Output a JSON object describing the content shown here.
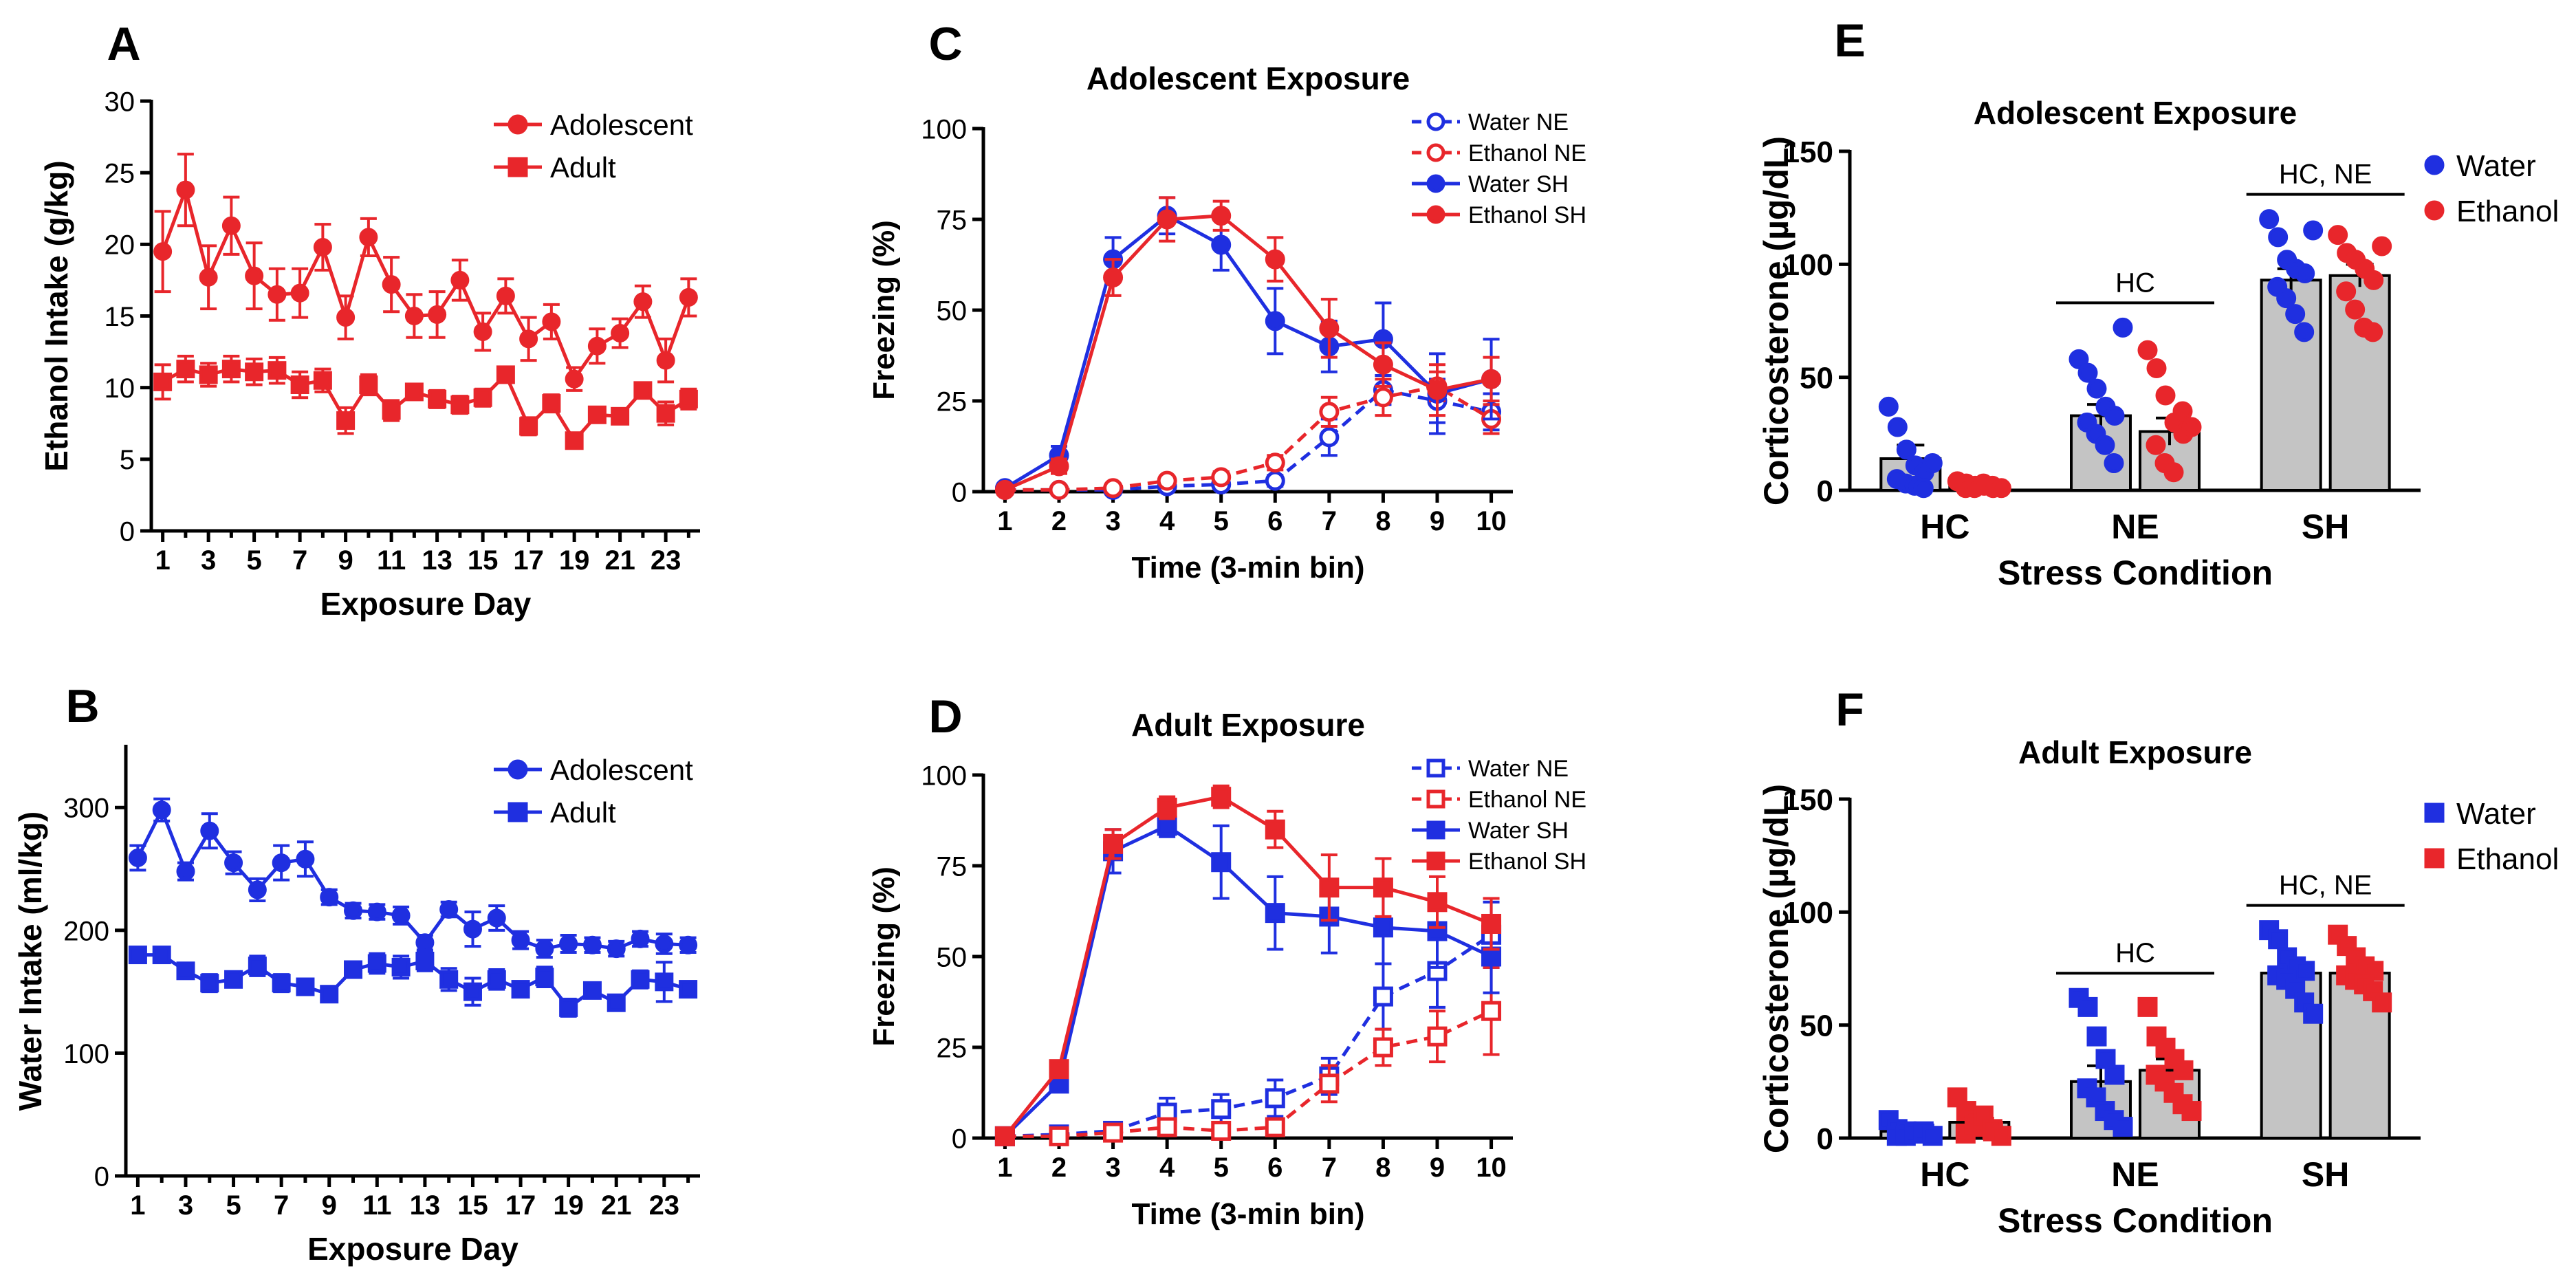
{
  "colors": {
    "red": "#e8262b",
    "blue": "#1f2fe0",
    "black": "#000000",
    "grey": "#c4c4c4"
  },
  "chart_data": [
    {
      "id": "A",
      "type": "line",
      "panel_label": "A",
      "title": "",
      "xlabel": "Exposure Day",
      "ylabel": "Ethanol Intake (g/kg)",
      "xlim": [
        0.5,
        24.5
      ],
      "ylim": [
        0,
        30
      ],
      "xticks": [
        1,
        3,
        5,
        7,
        9,
        11,
        13,
        15,
        17,
        19,
        21,
        23
      ],
      "yticks": [
        0,
        5,
        10,
        15,
        20,
        25,
        30
      ],
      "legend_position": "top-right",
      "series": [
        {
          "name": "Adolescent",
          "color": "#e8262b",
          "marker": "circle",
          "filled": true,
          "dashed": false,
          "x": [
            1,
            2,
            3,
            4,
            5,
            6,
            7,
            8,
            9,
            10,
            11,
            12,
            13,
            14,
            15,
            16,
            17,
            18,
            19,
            20,
            21,
            22,
            23,
            24
          ],
          "y": [
            19.5,
            23.8,
            17.7,
            21.3,
            17.8,
            16.5,
            16.6,
            19.8,
            14.9,
            20.5,
            17.2,
            15.0,
            15.1,
            17.5,
            13.9,
            16.4,
            13.4,
            14.6,
            10.6,
            12.9,
            13.8,
            16.0,
            11.9,
            16.3
          ],
          "err": [
            2.8,
            2.5,
            2.2,
            2.0,
            2.3,
            1.8,
            1.7,
            1.6,
            1.5,
            1.3,
            1.9,
            1.5,
            1.6,
            1.4,
            1.3,
            1.2,
            1.5,
            1.2,
            0.8,
            1.2,
            1.0,
            1.1,
            1.5,
            1.3
          ]
        },
        {
          "name": "Adult",
          "color": "#e8262b",
          "marker": "square",
          "filled": true,
          "dashed": false,
          "x": [
            1,
            2,
            3,
            4,
            5,
            6,
            7,
            8,
            9,
            10,
            11,
            12,
            13,
            14,
            15,
            16,
            17,
            18,
            19,
            20,
            21,
            22,
            23,
            24
          ],
          "y": [
            10.4,
            11.3,
            10.9,
            11.3,
            11.1,
            11.2,
            10.2,
            10.5,
            7.7,
            10.2,
            8.4,
            9.7,
            9.2,
            8.8,
            9.3,
            10.9,
            7.3,
            8.9,
            6.3,
            8.1,
            8.0,
            9.8,
            8.2,
            9.2
          ],
          "err": [
            1.2,
            0.9,
            0.8,
            0.9,
            0.9,
            0.9,
            0.9,
            0.8,
            0.9,
            0.7,
            0.7,
            0.5,
            0.6,
            0.6,
            0.6,
            0.5,
            0.6,
            0.6,
            0.4,
            0.5,
            0.5,
            0.5,
            0.8,
            0.7
          ]
        }
      ]
    },
    {
      "id": "B",
      "type": "line",
      "panel_label": "B",
      "title": "",
      "xlabel": "Exposure Day",
      "ylabel": "Water Intake (ml/kg)",
      "xlim": [
        0.5,
        24.5
      ],
      "ylim": [
        0,
        350
      ],
      "xticks": [
        1,
        3,
        5,
        7,
        9,
        11,
        13,
        15,
        17,
        19,
        21,
        23
      ],
      "yticks": [
        0,
        100,
        200,
        300
      ],
      "legend_position": "top-right",
      "series": [
        {
          "name": "Adolescent",
          "color": "#1f2fe0",
          "marker": "circle",
          "filled": true,
          "dashed": false,
          "x": [
            1,
            2,
            3,
            4,
            5,
            6,
            7,
            8,
            9,
            10,
            11,
            12,
            13,
            14,
            15,
            16,
            17,
            18,
            19,
            20,
            21,
            22,
            23,
            24
          ],
          "y": [
            259,
            298,
            248,
            281,
            255,
            233,
            255,
            258,
            227,
            216,
            215,
            212,
            190,
            217,
            201,
            210,
            192,
            185,
            189,
            188,
            185,
            193,
            189,
            188
          ],
          "err": [
            10,
            9,
            7,
            14,
            9,
            9,
            14,
            14,
            6,
            6,
            6,
            7,
            6,
            6,
            14,
            10,
            7,
            7,
            7,
            6,
            6,
            6,
            8,
            6
          ]
        },
        {
          "name": "Adult",
          "color": "#1f2fe0",
          "marker": "square",
          "filled": true,
          "dashed": false,
          "x": [
            1,
            2,
            3,
            4,
            5,
            6,
            7,
            8,
            9,
            10,
            11,
            12,
            13,
            14,
            15,
            16,
            17,
            18,
            19,
            20,
            21,
            22,
            23,
            24
          ],
          "y": [
            180,
            180,
            167,
            157,
            160,
            171,
            157,
            154,
            148,
            168,
            173,
            170,
            175,
            160,
            150,
            160,
            152,
            162,
            137,
            151,
            141,
            160,
            158,
            152
          ],
          "err": [
            6,
            5,
            5,
            7,
            6,
            8,
            7,
            6,
            6,
            6,
            8,
            9,
            8,
            9,
            11,
            8,
            6,
            8,
            7,
            6,
            5,
            7,
            16,
            6
          ]
        }
      ]
    },
    {
      "id": "C",
      "type": "line",
      "panel_label": "C",
      "title": "Adolescent Exposure",
      "xlabel": "Time (3-min bin)",
      "ylabel": "Freezing (%)",
      "xlim": [
        0.6,
        10.4
      ],
      "ylim": [
        0,
        100
      ],
      "xticks": [
        1,
        2,
        3,
        4,
        5,
        6,
        7,
        8,
        9,
        10
      ],
      "yticks": [
        0,
        25,
        50,
        75,
        100
      ],
      "legend_position": "top-right",
      "series": [
        {
          "name": "Water NE",
          "color": "#1f2fe0",
          "marker": "circle",
          "filled": false,
          "dashed": true,
          "x": [
            1,
            2,
            3,
            4,
            5,
            6,
            7,
            8,
            9,
            10
          ],
          "y": [
            0.5,
            0.5,
            0.5,
            1.5,
            2,
            3,
            15,
            28,
            25,
            22
          ],
          "err": [
            0.5,
            0.5,
            0.5,
            1,
            1,
            1.5,
            5,
            4,
            6,
            5
          ]
        },
        {
          "name": "Ethanol NE",
          "color": "#e8262b",
          "marker": "circle",
          "filled": false,
          "dashed": true,
          "x": [
            1,
            2,
            3,
            4,
            5,
            6,
            7,
            8,
            9,
            10
          ],
          "y": [
            0.5,
            0.5,
            1,
            3,
            4,
            8,
            22,
            26,
            29,
            20
          ],
          "err": [
            0.5,
            0.5,
            0.5,
            1,
            1.5,
            2,
            4,
            5,
            4,
            4
          ]
        },
        {
          "name": "Water SH",
          "color": "#1f2fe0",
          "marker": "circle",
          "filled": true,
          "dashed": false,
          "x": [
            1,
            2,
            3,
            4,
            5,
            6,
            7,
            8,
            9,
            10
          ],
          "y": [
            1,
            10,
            64,
            76,
            68,
            47,
            40,
            42,
            27,
            31
          ],
          "err": [
            0.8,
            2.5,
            6,
            5,
            7,
            9,
            7,
            10,
            11,
            11
          ]
        },
        {
          "name": "Ethanol SH",
          "color": "#e8262b",
          "marker": "circle",
          "filled": true,
          "dashed": false,
          "x": [
            1,
            2,
            3,
            4,
            5,
            6,
            7,
            8,
            9,
            10
          ],
          "y": [
            0.5,
            7,
            59,
            75,
            76,
            64,
            45,
            35,
            28,
            31
          ],
          "err": [
            0.5,
            2,
            5,
            6,
            4,
            6,
            8,
            6,
            7,
            6
          ]
        }
      ]
    },
    {
      "id": "D",
      "type": "line",
      "panel_label": "D",
      "title": "Adult Exposure",
      "xlabel": "Time (3-min bin)",
      "ylabel": "Freezing (%)",
      "xlim": [
        0.6,
        10.4
      ],
      "ylim": [
        0,
        100
      ],
      "xticks": [
        1,
        2,
        3,
        4,
        5,
        6,
        7,
        8,
        9,
        10
      ],
      "yticks": [
        0,
        25,
        50,
        75,
        100
      ],
      "legend_position": "top-right",
      "series": [
        {
          "name": "Water NE",
          "color": "#1f2fe0",
          "marker": "square",
          "filled": false,
          "dashed": true,
          "x": [
            1,
            2,
            3,
            4,
            5,
            6,
            7,
            8,
            9,
            10
          ],
          "y": [
            0.5,
            1,
            2,
            7,
            8,
            11,
            17,
            39,
            46,
            56
          ],
          "err": [
            0.5,
            0.5,
            1,
            4,
            4,
            5,
            5,
            9,
            10,
            9
          ]
        },
        {
          "name": "Ethanol NE",
          "color": "#e8262b",
          "marker": "square",
          "filled": false,
          "dashed": true,
          "x": [
            1,
            2,
            3,
            4,
            5,
            6,
            7,
            8,
            9,
            10
          ],
          "y": [
            0.5,
            0.5,
            1.5,
            3,
            2,
            3,
            15,
            25,
            28,
            35
          ],
          "err": [
            0.5,
            0.5,
            0.5,
            1,
            1,
            1,
            5,
            5,
            7,
            12
          ]
        },
        {
          "name": "Water SH",
          "color": "#1f2fe0",
          "marker": "square",
          "filled": true,
          "dashed": false,
          "x": [
            1,
            2,
            3,
            4,
            5,
            6,
            7,
            8,
            9,
            10
          ],
          "y": [
            0.5,
            15,
            79,
            86,
            76,
            62,
            61,
            58,
            57,
            50
          ],
          "err": [
            0.5,
            2,
            6,
            3,
            10,
            10,
            10,
            10,
            10,
            10
          ]
        },
        {
          "name": "Ethanol SH",
          "color": "#e8262b",
          "marker": "square",
          "filled": true,
          "dashed": false,
          "x": [
            1,
            2,
            3,
            4,
            5,
            6,
            7,
            8,
            9,
            10
          ],
          "y": [
            0.5,
            19,
            81,
            91,
            94,
            85,
            69,
            69,
            65,
            59
          ],
          "err": [
            0.5,
            2,
            4,
            3,
            3,
            5,
            9,
            8,
            7,
            7
          ]
        }
      ]
    },
    {
      "id": "E",
      "type": "bar",
      "panel_label": "E",
      "title": "Adolescent Exposure",
      "xlabel": "Stress Condition",
      "ylabel": "Corticosterone (µg/dL)",
      "ylim": [
        0,
        150
      ],
      "yticks": [
        0,
        50,
        100,
        150
      ],
      "categories": [
        "HC",
        "NE",
        "SH"
      ],
      "marker": "circle",
      "legend_position": "top-right",
      "series": [
        {
          "name": "Water",
          "color": "#1f2fe0",
          "values": [
            14,
            33,
            93
          ],
          "err": [
            6,
            5,
            5
          ],
          "points": [
            [
              37,
              28,
              18,
              11,
              8,
              5,
              3,
              2,
              1,
              12
            ],
            [
              58,
              52,
              45,
              37,
              33,
              30,
              25,
              20,
              12,
              72
            ],
            [
              120,
              112,
              102,
              98,
              96,
              90,
              85,
              78,
              70,
              115
            ]
          ]
        },
        {
          "name": "Ethanol",
          "color": "#e8262b",
          "values": [
            2,
            26,
            95
          ],
          "err": [
            1,
            6,
            5
          ],
          "points": [
            [
              4,
              3,
              2,
              2,
              1,
              1,
              1,
              3,
              2,
              1
            ],
            [
              62,
              54,
              42,
              30,
              25,
              20,
              12,
              8,
              35,
              28
            ],
            [
              113,
              105,
              102,
              98,
              93,
              88,
              80,
              72,
              70,
              108
            ]
          ]
        }
      ],
      "annotations": [
        {
          "text": "HC",
          "over": "NE"
        },
        {
          "text": "HC, NE",
          "over": "SH"
        }
      ]
    },
    {
      "id": "F",
      "type": "bar",
      "panel_label": "F",
      "title": "Adult Exposure",
      "xlabel": "Stress Condition",
      "ylabel": "Corticosterone (µg/dL)",
      "ylim": [
        0,
        150
      ],
      "yticks": [
        0,
        50,
        100,
        150
      ],
      "categories": [
        "HC",
        "NE",
        "SH"
      ],
      "marker": "square",
      "legend_position": "top-right",
      "series": [
        {
          "name": "Water",
          "color": "#1f2fe0",
          "values": [
            3,
            25,
            73
          ],
          "err": [
            1,
            7,
            4
          ],
          "points": [
            [
              8,
              4,
              3,
              2,
              2,
              1,
              1,
              2,
              3,
              1
            ],
            [
              62,
              58,
              45,
              35,
              28,
              22,
              18,
              12,
              8,
              5
            ],
            [
              92,
              88,
              80,
              76,
              74,
              72,
              70,
              66,
              60,
              55
            ]
          ]
        },
        {
          "name": "Ethanol",
          "color": "#e8262b",
          "values": [
            7,
            30,
            73
          ],
          "err": [
            3,
            5,
            3
          ],
          "points": [
            [
              18,
              12,
              8,
              5,
              3,
              2,
              6,
              10,
              4,
              1
            ],
            [
              58,
              45,
              40,
              35,
              30,
              28,
              25,
              20,
              15,
              12
            ],
            [
              90,
              85,
              80,
              76,
              74,
              72,
              70,
              68,
              65,
              60
            ]
          ]
        }
      ],
      "annotations": [
        {
          "text": "HC",
          "over": "NE"
        },
        {
          "text": "HC, NE",
          "over": "SH"
        }
      ]
    }
  ]
}
